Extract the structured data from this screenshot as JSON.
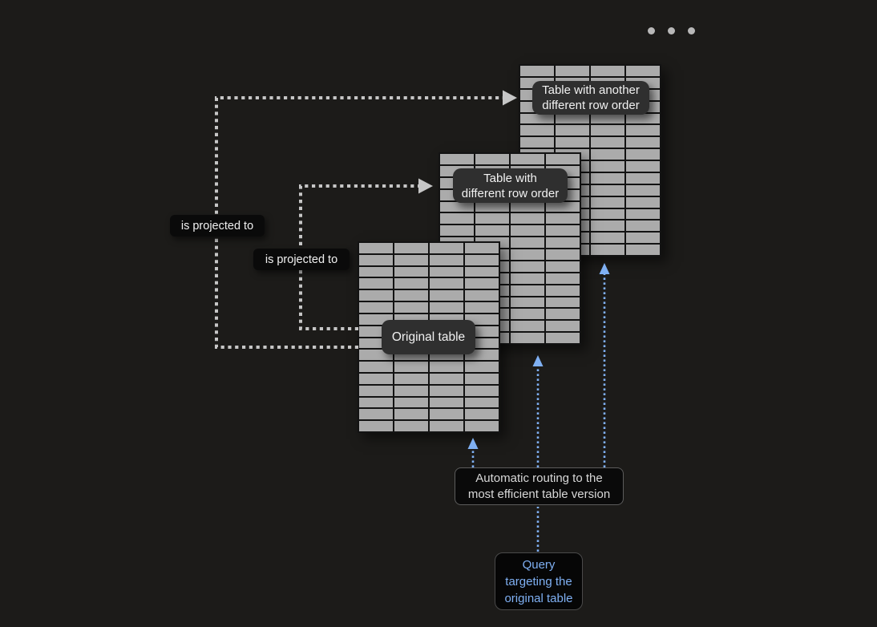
{
  "window": {
    "ellipsis_dot_count": 3
  },
  "diagram": {
    "tables": {
      "original": {
        "label": "Original table",
        "rows": 16,
        "cols": 4
      },
      "row_order_v2": {
        "label_line1": "Table with",
        "label_line2": "different row order",
        "rows": 16,
        "cols": 4
      },
      "row_order_v3": {
        "label_line1": "Table with another",
        "label_line2": "different row order",
        "rows": 16,
        "cols": 4
      }
    },
    "projections": {
      "label_outer": "is projected to",
      "label_inner": "is projected to"
    },
    "routing": {
      "label_line1": "Automatic routing to the",
      "label_line2": "most efficient table version"
    },
    "query": {
      "label_line1": "Query",
      "label_line2": "targeting the",
      "label_line3": "original table"
    }
  },
  "colors": {
    "background": "#1c1b19",
    "table_cell": "#ababab",
    "table_grid": "#131313",
    "table_label_bg": "#2f2f2f",
    "black_label_bg": "#0a0a0a",
    "text_light": "#f0f0f0",
    "connector_gray": "#c6c6c6",
    "accent_blue": "#7fb0f3"
  }
}
